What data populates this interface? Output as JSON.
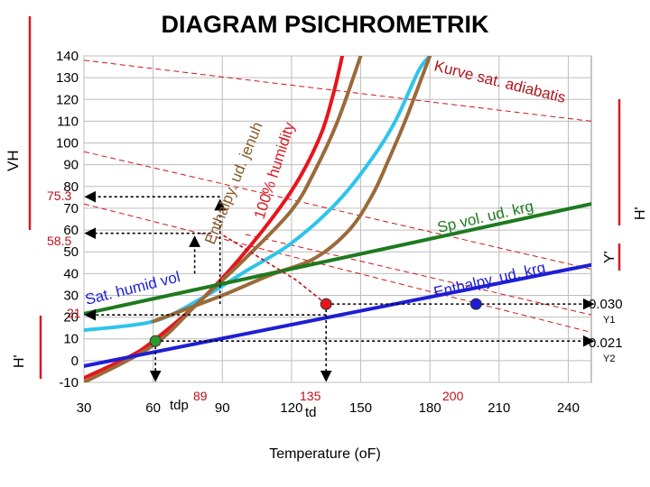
{
  "chart_data": {
    "type": "line",
    "title": "DIAGRAM PSICHROMETRIK",
    "xlabel": "Temperature (oF)",
    "ylabel": "",
    "xlim": [
      30,
      250
    ],
    "ylim": [
      -10,
      140
    ],
    "x_ticks": [
      30,
      60,
      90,
      120,
      150,
      180,
      210,
      240
    ],
    "y_ticks": [
      -10,
      0,
      10,
      20,
      30,
      40,
      50,
      60,
      70,
      80,
      90,
      100,
      110,
      120,
      130,
      140
    ],
    "grid": true,
    "series": [
      {
        "name": "100% humidity",
        "color": "#e8141c",
        "x": [
          30,
          50,
          60,
          80,
          100,
          120,
          132,
          138,
          142
        ],
        "y": [
          -8,
          2,
          9,
          27,
          50,
          78,
          102,
          122,
          140
        ]
      },
      {
        "name": "",
        "color": "#2ec4ec",
        "x": [
          30,
          60,
          80,
          100,
          120,
          140,
          155,
          165,
          175,
          180
        ],
        "y": [
          14,
          18,
          28,
          41,
          54,
          73,
          93,
          110,
          133,
          140
        ]
      },
      {
        "name": "",
        "color": "#9a6a3a",
        "x": [
          30,
          60,
          80,
          100,
          120,
          130,
          140,
          150
        ],
        "y": [
          -10,
          7,
          27,
          47,
          69,
          87,
          110,
          140
        ]
      },
      {
        "name": "",
        "color": "#9a6a3a",
        "x": [
          60,
          90,
          110,
          130,
          145,
          155,
          162,
          170,
          180
        ],
        "y": [
          18,
          30,
          39,
          47,
          60,
          76,
          92,
          112,
          140
        ]
      },
      {
        "name": "Sp vol. ud. krg",
        "color": "#1e7a1e",
        "x": [
          30,
          250
        ],
        "y": [
          21.5,
          72
        ]
      },
      {
        "name": "Enthalpy. ud. krg",
        "color": "#1d1ed4",
        "x": [
          30,
          250
        ],
        "y": [
          -2.5,
          44
        ]
      }
    ],
    "guide_lines": [
      {
        "x": [
          30,
          250
        ],
        "y": [
          138,
          110
        ]
      },
      {
        "x": [
          30,
          250
        ],
        "y": [
          96,
          42
        ]
      },
      {
        "x": [
          30,
          250
        ],
        "y": [
          72,
          13
        ]
      },
      {
        "x": [
          100,
          250
        ],
        "y": [
          58,
          21
        ]
      }
    ],
    "points": [
      {
        "label": "tdp",
        "x": 61,
        "y": 9,
        "color": "#2e9a2e"
      },
      {
        "label": "td",
        "x": 135,
        "y": 26,
        "color": "#e8141c"
      },
      {
        "label": "",
        "x": 200,
        "y": 26,
        "color": "#1d1ed4"
      }
    ],
    "marked_values": {
      "y_75_3": "75.3",
      "y_58_5": "58.5",
      "y_21": "21",
      "x_89": "89",
      "x_135": "135",
      "x_200": "200",
      "tdp_label": "tdp",
      "td_label": "td"
    },
    "annotations": {
      "kurve": "Kurve sat. adiabatis",
      "sp_vol": "Sp vol. ud. krg",
      "enthalpy_ud": "Enthalpy. ud. krg",
      "enthalpy_jenuh": "Enthalpy. ud. jenuh",
      "humidity": "100% humidity",
      "sat_humid": "Sat. humid vol",
      "left_vh": "VH",
      "left_h": "H'",
      "right_h": "H'",
      "right_y": "Y'",
      "y1_value": "0.030",
      "y1_label": "Y1",
      "y2_value": "0.021",
      "y2_label": "Y2"
    }
  }
}
